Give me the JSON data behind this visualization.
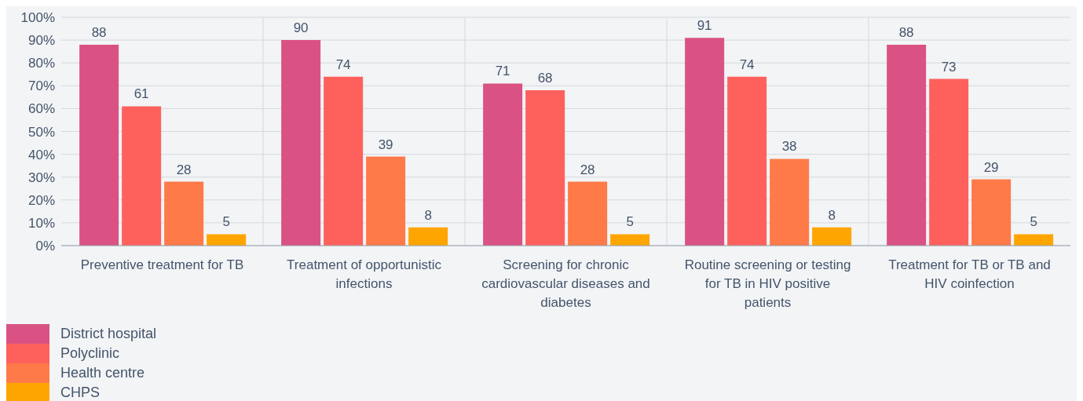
{
  "chart_data": {
    "type": "bar",
    "categories": [
      "Preventive treatment for TB",
      "Treatment of opportunistic infections",
      "Screening for chronic cardiovascular diseases and diabetes",
      "Routine screening or testing for TB in HIV positive patients",
      "Treatment for TB or TB and HIV coinfection"
    ],
    "series": [
      {
        "name": "District hospital",
        "color": "#d95283",
        "values": [
          88,
          90,
          71,
          91,
          88
        ]
      },
      {
        "name": "Polyclinic",
        "color": "#fe615c",
        "values": [
          61,
          74,
          68,
          74,
          73
        ]
      },
      {
        "name": "Health centre",
        "color": "#fe7a48",
        "values": [
          28,
          39,
          28,
          38,
          29
        ]
      },
      {
        "name": "CHPS",
        "color": "#fea500",
        "values": [
          5,
          8,
          5,
          8,
          5
        ]
      }
    ],
    "ylim": [
      0,
      100
    ],
    "yticks": [
      {
        "value": 0,
        "label": "0%"
      },
      {
        "value": 10,
        "label": "10%"
      },
      {
        "value": 20,
        "label": "20%"
      },
      {
        "value": 30,
        "label": "30%"
      },
      {
        "value": 40,
        "label": "40%"
      },
      {
        "value": 50,
        "label": "50%"
      },
      {
        "value": 60,
        "label": "60%"
      },
      {
        "value": 70,
        "label": "70%"
      },
      {
        "value": 80,
        "label": "80%"
      },
      {
        "value": 90,
        "label": "90%"
      },
      {
        "value": 100,
        "label": "100%"
      }
    ],
    "grid": true,
    "data_labels": true,
    "legend": "bottom left"
  }
}
